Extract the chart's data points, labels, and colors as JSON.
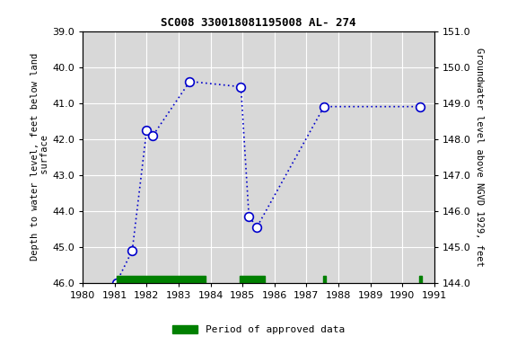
{
  "title": "SC008 330018081195008 AL- 274",
  "ylabel_left": "Depth to water level, feet below land\n surface",
  "ylabel_right": "Groundwater level above NGVD 1929, feet",
  "xlim": [
    1980,
    1991
  ],
  "ylim_left": [
    46.0,
    39.0
  ],
  "ylim_right": [
    144.0,
    151.0
  ],
  "yticks_left": [
    39.0,
    40.0,
    41.0,
    42.0,
    43.0,
    44.0,
    45.0,
    46.0
  ],
  "yticks_right": [
    144.0,
    145.0,
    146.0,
    147.0,
    148.0,
    149.0,
    150.0,
    151.0
  ],
  "xticks": [
    1980,
    1981,
    1982,
    1983,
    1984,
    1985,
    1986,
    1987,
    1988,
    1989,
    1990,
    1991
  ],
  "data_x": [
    1981.05,
    1981.55,
    1982.0,
    1982.2,
    1983.35,
    1984.95,
    1985.2,
    1985.45,
    1987.55,
    1990.55
  ],
  "data_y": [
    46.0,
    45.1,
    41.75,
    41.9,
    40.4,
    40.55,
    44.15,
    44.45,
    41.1,
    41.1
  ],
  "line_color": "#0000cc",
  "marker_facecolor": "#ffffff",
  "marker_edgecolor": "#0000cc",
  "background_color": "#ffffff",
  "plot_bg_color": "#d8d8d8",
  "grid_color": "#ffffff",
  "green_bars": [
    {
      "x_start": 1981.05,
      "x_end": 1983.85
    },
    {
      "x_start": 1984.9,
      "x_end": 1985.7
    },
    {
      "x_start": 1987.52,
      "x_end": 1987.62
    },
    {
      "x_start": 1990.52,
      "x_end": 1990.62
    }
  ],
  "legend_label": "Period of approved data",
  "legend_color": "#008000"
}
